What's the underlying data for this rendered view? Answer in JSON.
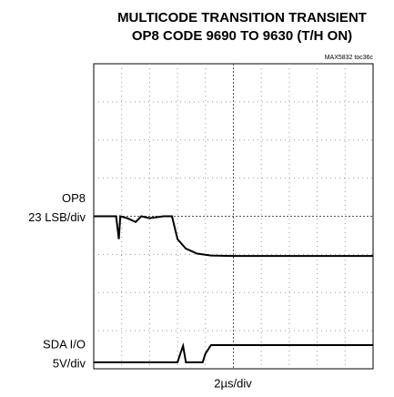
{
  "chart_data": {
    "type": "line",
    "title": [
      "MULTICODE TRANSITION TRANSIENT",
      "OP8 CODE 9690 TO 9630 (T/H ON)"
    ],
    "annotation": "MAX5832 toc36c",
    "x_label": "2µs/div",
    "xlim": [
      0,
      10
    ],
    "ylim": [
      0,
      8
    ],
    "grid": true,
    "series": [
      {
        "name": "OP8",
        "scale": "23 LSB/div",
        "color": "#000000",
        "x": [
          0,
          0.8,
          0.9,
          0.95,
          1.2,
          1.5,
          1.7,
          2.0,
          2.5,
          2.8,
          3.0,
          3.3,
          3.7,
          4.2,
          5,
          10
        ],
        "values": [
          4.0,
          4.0,
          3.4,
          4.0,
          3.95,
          3.85,
          4.0,
          3.95,
          4.0,
          4.0,
          3.4,
          3.15,
          3.02,
          2.97,
          2.96,
          2.96
        ]
      },
      {
        "name": "SDA I/O",
        "scale": "5V/div",
        "color": "#000000",
        "x": [
          0,
          3.0,
          3.1,
          3.2,
          3.3,
          3.9,
          4.0,
          4.2,
          10
        ],
        "values": [
          0.17,
          0.17,
          0.4,
          0.6,
          0.17,
          0.17,
          0.4,
          0.62,
          0.62
        ]
      }
    ]
  }
}
